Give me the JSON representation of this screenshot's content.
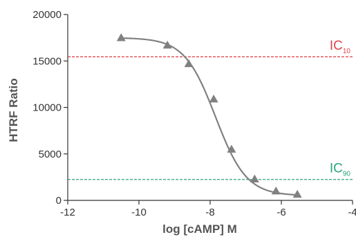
{
  "chart_data": {
    "type": "scatter",
    "title": "",
    "xlabel": "log [cAMP] M",
    "ylabel": "HTRF Ratio",
    "xlim": [
      -12,
      -4
    ],
    "ylim": [
      0,
      20000
    ],
    "x_ticks": [
      -12,
      -10,
      -8,
      -6,
      -4
    ],
    "y_ticks": [
      0,
      5000,
      10000,
      15000,
      20000
    ],
    "series": [
      {
        "marker": "triangle",
        "color": "#808080",
        "x": [
          -10.5,
          -9.2,
          -8.6,
          -7.9,
          -7.4,
          -6.75,
          -6.15,
          -5.55
        ],
        "y": [
          17500,
          16700,
          14700,
          10900,
          5500,
          2300,
          1000,
          650
        ]
      }
    ],
    "fit_curve": {
      "model": "four-parameter logistic",
      "top": 17500,
      "bottom": 500,
      "log_ec50": -7.85,
      "hill_slope": -1.0,
      "x_range": [
        -10.5,
        -5.55
      ],
      "color": "#808080"
    },
    "reference_lines": [
      {
        "label": "IC",
        "subscript": "10",
        "y": 15450,
        "color": "#e0454f"
      },
      {
        "label": "IC",
        "subscript": "90",
        "y": 2250,
        "color": "#2aa37e"
      }
    ]
  }
}
